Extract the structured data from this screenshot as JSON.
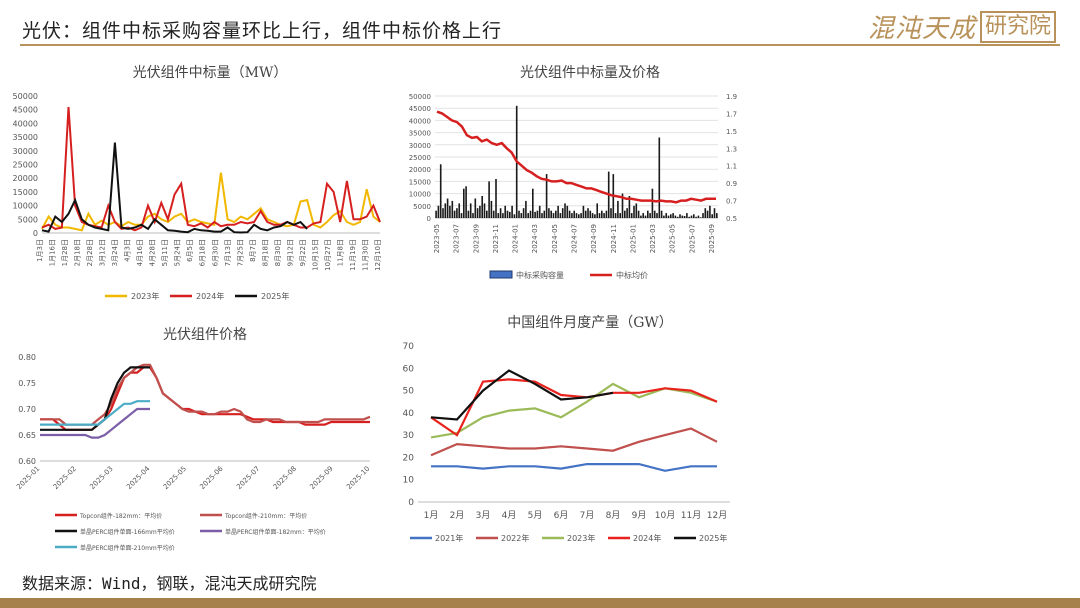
{
  "header": {
    "title": "光伏：组件中标采购容量环比上行，组件中标价格上行"
  },
  "logo": {
    "cursive": "混沌天成",
    "box": "研究院"
  },
  "source": "数据来源：Wind，钢联，混沌天成研究院",
  "colors": {
    "gold": "#b8925a",
    "y2023": "#f2b800",
    "y2024": "#d62020",
    "y2025": "#111111"
  },
  "chart_data": [
    {
      "id": "c1",
      "type": "line",
      "title": "光伏组件中标量（MW）",
      "ylim": [
        0,
        50000
      ],
      "yticks": [
        0,
        5000,
        10000,
        15000,
        20000,
        25000,
        30000,
        35000,
        40000,
        45000,
        50000
      ],
      "xticks": [
        "1月3日",
        "1月16日",
        "1月28日",
        "2月18日",
        "2月28日",
        "3月12日",
        "3月24日",
        "4月3日",
        "4月16日",
        "4月28日",
        "5月11日",
        "5月24日",
        "6月5日",
        "6月18日",
        "6月30日",
        "7月13日",
        "7月25日",
        "8月7日",
        "8月18日",
        "8月30日",
        "9月12日",
        "9月22日",
        "10月15日",
        "10月27日",
        "11月8日",
        "11月19日",
        "11月30日",
        "12月10日"
      ],
      "series": [
        {
          "name": "2023年",
          "color": "#f2b800",
          "values": [
            1500,
            6000,
            3000,
            2000,
            2000,
            1500,
            1000,
            7000,
            3000,
            4500,
            3000,
            4000,
            2500,
            4000,
            3000,
            3000,
            6000,
            7000,
            5000,
            4000,
            6000,
            7000,
            4000,
            5000,
            4000,
            3500,
            3000,
            22000,
            5000,
            4000,
            6000,
            5000,
            7000,
            9000,
            5000,
            4000,
            3000,
            2500,
            3000,
            11500,
            12000,
            3000,
            2000,
            4000,
            6500,
            8000,
            4000,
            3000,
            4000,
            16000,
            6000,
            4000
          ]
        },
        {
          "name": "2024年",
          "color": "#d62020",
          "values": [
            2000,
            3000,
            1500,
            2000,
            46000,
            10000,
            4000,
            3000,
            2500,
            2000,
            10000,
            4000,
            1500,
            2000,
            1000,
            2000,
            10000,
            4000,
            11000,
            5000,
            14000,
            18000,
            3000,
            2500,
            3500,
            2000,
            4000,
            2500,
            3000,
            3000,
            4000,
            3500,
            4000,
            8000,
            4000,
            3000,
            3000,
            4000,
            3000,
            2000,
            2000,
            3500,
            4000,
            18000,
            15000,
            4000,
            19000,
            5000,
            5000,
            6000,
            10000,
            4000
          ]
        },
        {
          "name": "2025年",
          "color": "#111111",
          "values": [
            1000,
            500,
            6000,
            4000,
            7000,
            12000,
            5000,
            3000,
            2000,
            1500,
            1000,
            33000,
            2000,
            1500,
            2000,
            3000,
            1500,
            5000,
            3000,
            1000,
            800,
            500,
            300,
            1500,
            1000,
            800,
            500,
            500,
            2000,
            300,
            200,
            300,
            3000,
            1500,
            1000,
            2000,
            2500,
            4000,
            3000,
            4000,
            1500
          ]
        }
      ]
    },
    {
      "id": "c2",
      "type": "bar+line",
      "title": "光伏组件中标量及价格",
      "ylim": [
        0,
        50000
      ],
      "yticks": [
        0,
        5000,
        10000,
        15000,
        20000,
        25000,
        30000,
        35000,
        40000,
        45000,
        50000
      ],
      "y2lim": [
        0.5,
        1.9
      ],
      "y2ticks": [
        "0.5",
        "0.7",
        "0.9",
        "1.1",
        "1.3",
        "1.5",
        "1.7",
        "1.9"
      ],
      "xticks": [
        "2023-05",
        "2023-07",
        "2023-09",
        "2023-11",
        "2024-01",
        "2024-03",
        "2024-05",
        "2024-07",
        "2024-09",
        "2024-11",
        "2025-01",
        "2025-03",
        "2025-05",
        "2025-07",
        "2025-09"
      ],
      "series": [
        {
          "name": "中标采购容量",
          "color": "#1a1a1a",
          "legend_color": "#4472c4",
          "values": [
            3000,
            5000,
            22000,
            4000,
            6000,
            8000,
            5000,
            7000,
            3000,
            4000,
            6000,
            2000,
            12000,
            13000,
            3000,
            6000,
            2000,
            8000,
            4000,
            5000,
            9000,
            6000,
            3000,
            15000,
            7000,
            3000,
            16000,
            2000,
            4000,
            2000,
            5000,
            3000,
            2500,
            5000,
            1500,
            46000,
            3000,
            2000,
            4000,
            7000,
            2000,
            3000,
            12000,
            2500,
            3000,
            5000,
            2000,
            3000,
            18000,
            4000,
            3000,
            2000,
            3000,
            5000,
            2000,
            4000,
            6000,
            5000,
            3000,
            2000,
            3000,
            2000,
            1500,
            2000,
            5000,
            3000,
            4000,
            3000,
            2000,
            1500,
            6000,
            2000,
            3000,
            2000,
            3000,
            19000,
            4000,
            18000,
            2000,
            7000,
            2000,
            10000,
            3000,
            4000,
            9000,
            2000,
            5000,
            6000,
            3000,
            1000,
            2000,
            1000,
            3000,
            2000,
            12000,
            3000,
            2000,
            33000,
            3000,
            1000,
            2000,
            1000,
            1500,
            2000,
            1000,
            500,
            1500,
            1000,
            800,
            2000,
            500,
            1000,
            1500,
            500,
            1000,
            300,
            2000,
            4000,
            3000,
            5000,
            1500,
            4000,
            2000
          ]
        },
        {
          "name": "中标均价",
          "color": "#d62020",
          "values": [
            1.72,
            1.7,
            1.66,
            1.62,
            1.6,
            1.55,
            1.45,
            1.42,
            1.43,
            1.38,
            1.4,
            1.36,
            1.34,
            1.36,
            1.3,
            1.25,
            1.15,
            1.1,
            1.05,
            1.02,
            0.98,
            0.95,
            0.94,
            0.92,
            0.92,
            0.93,
            0.9,
            0.9,
            0.88,
            0.86,
            0.84,
            0.84,
            0.82,
            0.8,
            0.78,
            0.76,
            0.75,
            0.74,
            0.72,
            0.72,
            0.71,
            0.7,
            0.7,
            0.7,
            0.69,
            0.7,
            0.69,
            0.69,
            0.68,
            0.7,
            0.7,
            0.72,
            0.71,
            0.7,
            0.72,
            0.72,
            0.72
          ]
        }
      ]
    },
    {
      "id": "c3",
      "type": "line",
      "title": "光伏组件价格",
      "ylim": [
        0.6,
        0.8
      ],
      "yticks": [
        "0.60",
        "0.65",
        "0.70",
        "0.75",
        "0.80"
      ],
      "xticks": [
        "2025-01",
        "2025-02",
        "2025-03",
        "2025-04",
        "2025-05",
        "2025-06",
        "2025-07",
        "2025-08",
        "2025-09",
        "2025-10"
      ],
      "series": [
        {
          "name": "Topcon组件-182mm：平均价",
          "color": "#d62020",
          "values": [
            0.68,
            0.68,
            0.68,
            0.67,
            0.66,
            0.66,
            0.66,
            0.66,
            0.66,
            0.67,
            0.68,
            0.7,
            0.73,
            0.76,
            0.77,
            0.77,
            0.78,
            0.78,
            0.76,
            0.73,
            0.72,
            0.71,
            0.7,
            0.7,
            0.695,
            0.69,
            0.69,
            0.69,
            0.69,
            0.69,
            0.69,
            0.69,
            0.685,
            0.68,
            0.68,
            0.68,
            0.675,
            0.675,
            0.675,
            0.675,
            0.675,
            0.67,
            0.67,
            0.67,
            0.67,
            0.675,
            0.675,
            0.675,
            0.675,
            0.675,
            0.675,
            0.675
          ]
        },
        {
          "name": "Topcon组件-210mm：平均价",
          "color": "#c0504d",
          "values": [
            0.68,
            0.68,
            0.68,
            0.68,
            0.67,
            0.67,
            0.67,
            0.67,
            0.67,
            0.68,
            0.69,
            0.71,
            0.74,
            0.76,
            0.77,
            0.78,
            0.785,
            0.785,
            0.76,
            0.73,
            0.72,
            0.71,
            0.7,
            0.695,
            0.695,
            0.695,
            0.69,
            0.69,
            0.695,
            0.695,
            0.7,
            0.695,
            0.68,
            0.675,
            0.675,
            0.68,
            0.68,
            0.68,
            0.675,
            0.675,
            0.675,
            0.675,
            0.675,
            0.675,
            0.68,
            0.68,
            0.68,
            0.68,
            0.68,
            0.68,
            0.68,
            0.685
          ]
        },
        {
          "name": "单晶PERC组件单面-166mm平均价",
          "color": "#111111",
          "values": [
            0.66,
            0.66,
            0.66,
            0.66,
            0.66,
            0.66,
            0.66,
            0.66,
            0.66,
            0.67,
            0.68,
            0.72,
            0.75,
            0.77,
            0.78,
            0.78,
            0.78,
            0.78
          ]
        },
        {
          "name": "单晶PERC组件单面-182mm：平均价",
          "color": "#7b5ea7",
          "values": [
            0.65,
            0.65,
            0.65,
            0.65,
            0.65,
            0.65,
            0.65,
            0.65,
            0.645,
            0.645,
            0.65,
            0.66,
            0.67,
            0.68,
            0.69,
            0.7,
            0.7,
            0.7
          ]
        },
        {
          "name": "单晶PERC组件单面-210mm平均价",
          "color": "#4bacc6",
          "values": [
            0.67,
            0.67,
            0.67,
            0.67,
            0.67,
            0.67,
            0.67,
            0.67,
            0.67,
            0.67,
            0.68,
            0.69,
            0.7,
            0.71,
            0.71,
            0.715,
            0.715,
            0.715
          ]
        }
      ]
    },
    {
      "id": "c4",
      "type": "line",
      "title": "中国组件月度产量（GW）",
      "ylim": [
        0,
        70
      ],
      "yticks": [
        0,
        10,
        20,
        30,
        40,
        50,
        60,
        70
      ],
      "xticks": [
        "1月",
        "2月",
        "3月",
        "4月",
        "5月",
        "6月",
        "7月",
        "8月",
        "9月",
        "10月",
        "11月",
        "12月"
      ],
      "series": [
        {
          "name": "2021年",
          "color": "#4472c4",
          "values": [
            16,
            16,
            15,
            16,
            16,
            15,
            17,
            17,
            17,
            14,
            16,
            16
          ]
        },
        {
          "name": "2022年",
          "color": "#c0504d",
          "values": [
            21,
            26,
            25,
            24,
            24,
            25,
            24,
            23,
            27,
            30,
            33,
            27
          ]
        },
        {
          "name": "2023年",
          "color": "#9bbb59",
          "values": [
            29,
            31,
            38,
            41,
            42,
            38,
            45,
            53,
            47,
            51,
            49,
            45
          ]
        },
        {
          "name": "2024年",
          "color": "#e8231e",
          "values": [
            38,
            30,
            54,
            55,
            54,
            48,
            47,
            49,
            49,
            51,
            50,
            45
          ]
        },
        {
          "name": "2025年",
          "color": "#111111",
          "values": [
            38,
            37,
            50,
            59,
            53,
            46,
            47,
            49
          ]
        }
      ]
    }
  ]
}
